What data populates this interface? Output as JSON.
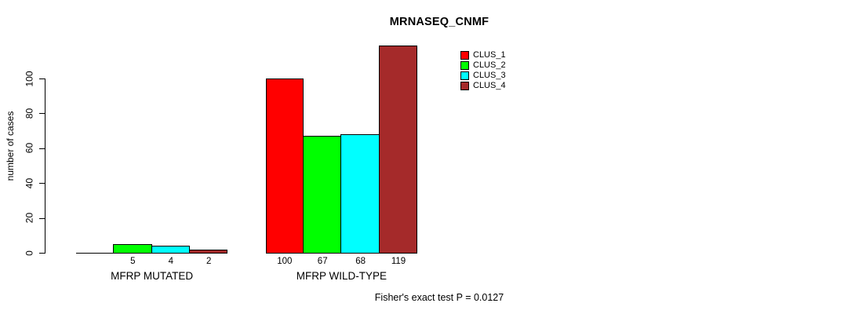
{
  "page": {
    "background_color": "#FFFFFF",
    "text_color": "#000000"
  },
  "chart_data": {
    "type": "bar",
    "title": "MRNASEQ_CNMF",
    "xlabel": "",
    "ylabel": "number of cases",
    "ylim": [
      0,
      100
    ],
    "yticks": [
      0,
      20,
      40,
      60,
      80,
      100
    ],
    "grid": false,
    "legend_position": "top-right",
    "bar_border_color": "#000000",
    "groups": [
      "MFRP MUTATED",
      "MFRP WILD-TYPE"
    ],
    "series": [
      {
        "name": "CLUS_1",
        "color": "#FF0000",
        "values": [
          0,
          100
        ],
        "value_labels": [
          "",
          "100"
        ]
      },
      {
        "name": "CLUS_2",
        "color": "#00FF00",
        "values": [
          5,
          67
        ],
        "value_labels": [
          "5",
          "67"
        ]
      },
      {
        "name": "CLUS_3",
        "color": "#00FFFF",
        "values": [
          4,
          68
        ],
        "value_labels": [
          "4",
          "68"
        ]
      },
      {
        "name": "CLUS_4",
        "color": "#A52A2A",
        "values": [
          2,
          119
        ],
        "value_labels": [
          "2",
          "119"
        ]
      }
    ],
    "annotation": "Fisher's exact test P = 0.0127"
  }
}
